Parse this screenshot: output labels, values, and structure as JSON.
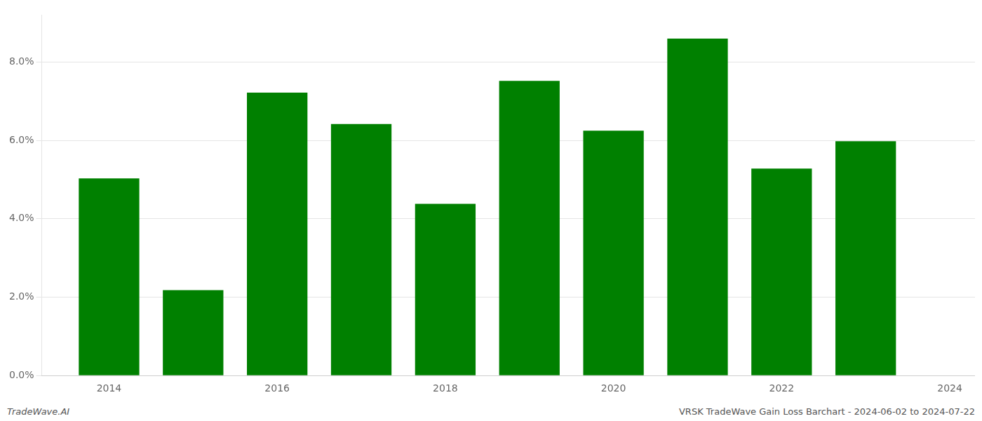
{
  "chart_data": {
    "type": "bar",
    "x": [
      2014,
      2015,
      2016,
      2017,
      2018,
      2019,
      2020,
      2021,
      2022,
      2023
    ],
    "values": [
      0.0503,
      0.0218,
      0.0722,
      0.0642,
      0.0438,
      0.0752,
      0.0625,
      0.086,
      0.0528,
      0.0598
    ],
    "color": "#008000",
    "xlim": [
      2013.2,
      2024.3
    ],
    "xticks": [
      2014,
      2016,
      2018,
      2020,
      2022,
      2024
    ],
    "ylim": [
      0.0,
      0.092
    ],
    "yticks": [
      {
        "value": 0.0,
        "label": "0.0%"
      },
      {
        "value": 0.02,
        "label": "2.0%"
      },
      {
        "value": 0.04,
        "label": "4.0%"
      },
      {
        "value": 0.06,
        "label": "6.0%"
      },
      {
        "value": 0.08,
        "label": "8.0%"
      }
    ],
    "grid": "y",
    "annotations": [
      "TradeWave.AI",
      "VRSK TradeWave Gain Loss Barchart - 2024-06-02 to 2024-07-22"
    ]
  }
}
